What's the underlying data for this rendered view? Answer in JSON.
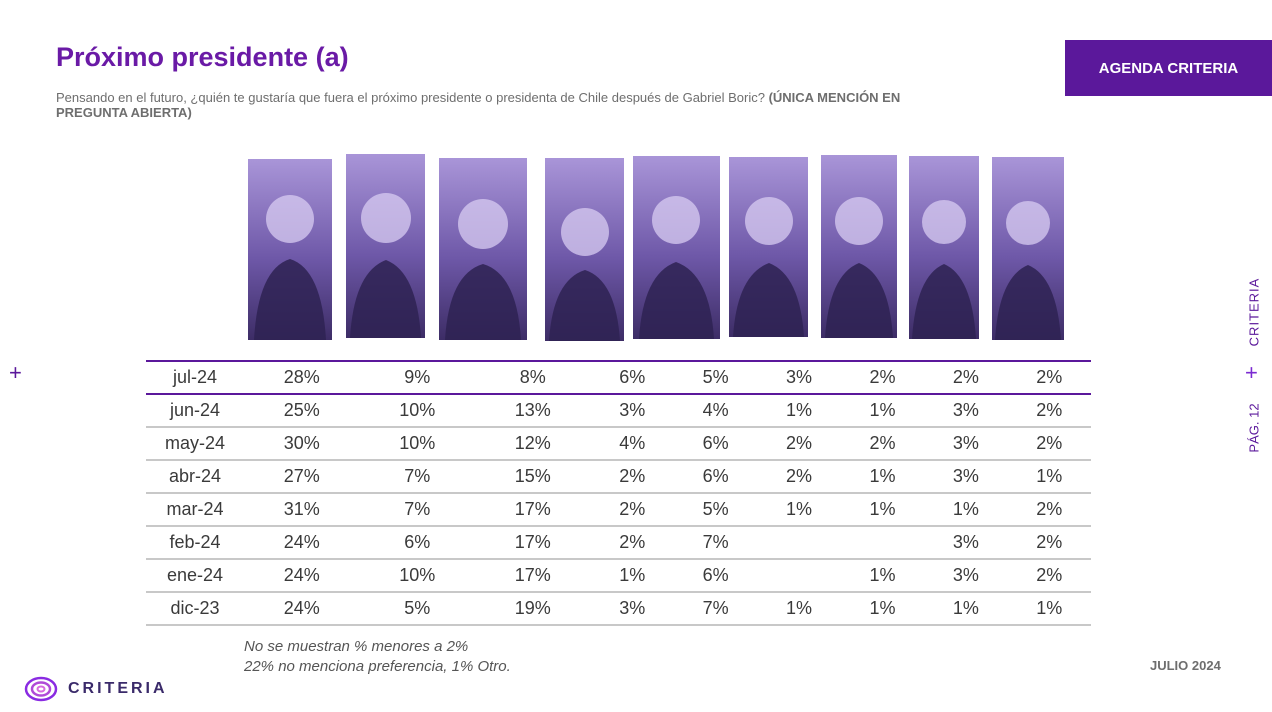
{
  "header": {
    "title": "Próximo presidente (a)",
    "subtitle": "Pensando en el futuro, ¿quién te gustaría que fuera el próximo presidente o presidenta de Chile después de Gabriel Boric? ",
    "subtitle_bold": "(ÚNICA MENCIÓN EN PREGUNTA ABIERTA)",
    "agenda_label": "AGENDA CRITERIA"
  },
  "candidates": [
    {
      "icon": "person-photo-icon"
    },
    {
      "icon": "person-photo-icon"
    },
    {
      "icon": "person-photo-icon"
    },
    {
      "icon": "person-photo-icon"
    },
    {
      "icon": "person-photo-icon"
    },
    {
      "icon": "person-photo-icon"
    },
    {
      "icon": "person-photo-icon"
    },
    {
      "icon": "person-photo-icon"
    },
    {
      "icon": "person-photo-icon"
    }
  ],
  "table": {
    "rows": [
      {
        "month": "jul-24",
        "values": [
          "28%",
          "9%",
          "8%",
          "6%",
          "5%",
          "3%",
          "2%",
          "2%",
          "2%"
        ]
      },
      {
        "month": "jun-24",
        "values": [
          "25%",
          "10%",
          "13%",
          "3%",
          "4%",
          "1%",
          "1%",
          "3%",
          "2%"
        ]
      },
      {
        "month": "may-24",
        "values": [
          "30%",
          "10%",
          "12%",
          "4%",
          "6%",
          "2%",
          "2%",
          "3%",
          "2%"
        ]
      },
      {
        "month": "abr-24",
        "values": [
          "27%",
          "7%",
          "15%",
          "2%",
          "6%",
          "2%",
          "1%",
          "3%",
          "1%"
        ]
      },
      {
        "month": "mar-24",
        "values": [
          "31%",
          "7%",
          "17%",
          "2%",
          "5%",
          "1%",
          "1%",
          "1%",
          "2%"
        ]
      },
      {
        "month": "feb-24",
        "values": [
          "24%",
          "6%",
          "17%",
          "2%",
          "7%",
          "",
          "",
          "3%",
          "2%"
        ]
      },
      {
        "month": "ene-24",
        "values": [
          "24%",
          "10%",
          "17%",
          "1%",
          "6%",
          "",
          "1%",
          "3%",
          "2%"
        ]
      },
      {
        "month": "dic-23",
        "values": [
          "24%",
          "5%",
          "19%",
          "3%",
          "7%",
          "1%",
          "1%",
          "1%",
          "1%"
        ]
      }
    ]
  },
  "notes": {
    "line1": "No se muestran % menores a 2%",
    "line2": "22% no menciona preferencia, 1% Otro."
  },
  "side": {
    "brand": "CRITERIA",
    "page": "PÁG. 12"
  },
  "footer": {
    "date": "JULIO 2024",
    "logo_text": "CRITERIA"
  },
  "colors": {
    "accent": "#5b189b",
    "title": "#6a1aa6",
    "photo_tint": "#8a73c7"
  }
}
